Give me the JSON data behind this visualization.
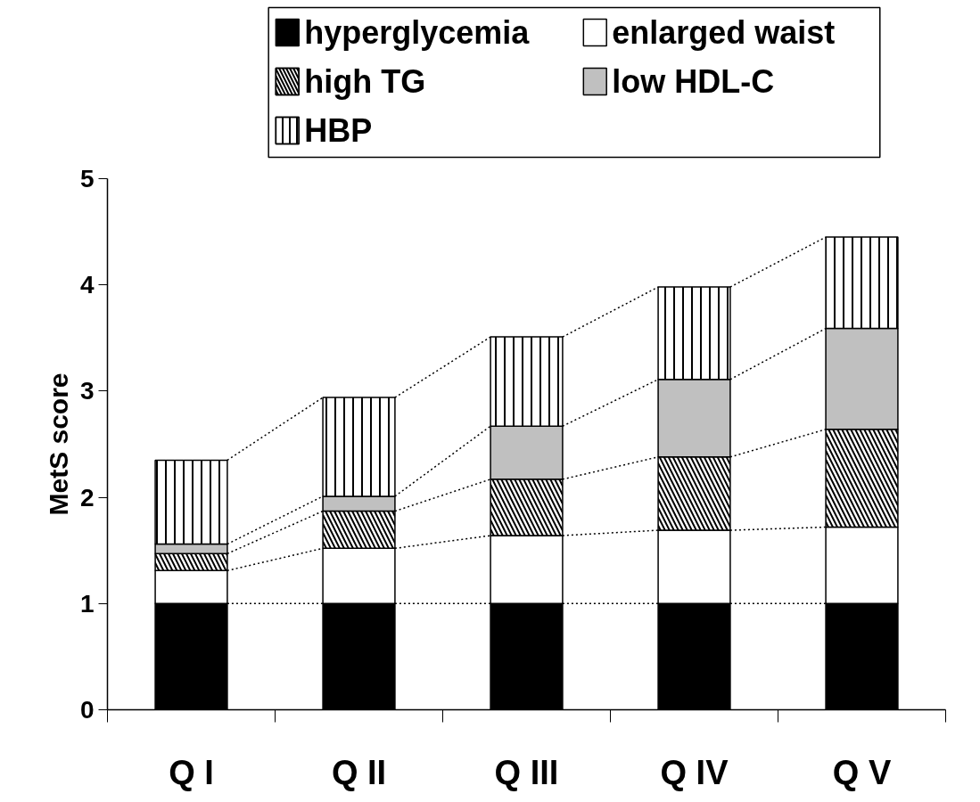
{
  "chart_data": {
    "type": "bar",
    "stacked": true,
    "ylabel": "MetS score",
    "categories": [
      "Q I",
      "Q II",
      "Q III",
      "Q IV",
      "Q V"
    ],
    "ylim": [
      0,
      5
    ],
    "yticks": [
      0,
      1,
      2,
      3,
      4,
      5
    ],
    "grid": false,
    "legend": "top",
    "series": [
      {
        "name": "hyperglycemia",
        "color": "#000000",
        "values": [
          1,
          1,
          1,
          1,
          1
        ]
      },
      {
        "name": "enlarged waist",
        "color": "#ffffff",
        "values": [
          0.31,
          0.52,
          0.64,
          0.69,
          0.72
        ]
      },
      {
        "name": "high TG",
        "color": "#ffffff",
        "values": [
          0.16,
          0.35,
          0.53,
          0.69,
          0.92
        ]
      },
      {
        "name": "low HDL-C",
        "color": "#c0c0c0",
        "values": [
          0.09,
          0.14,
          0.5,
          0.73,
          0.95
        ]
      },
      {
        "name": "HBP",
        "color": "#ffffff",
        "values": [
          0.79,
          0.93,
          0.84,
          0.87,
          0.86
        ]
      }
    ]
  }
}
